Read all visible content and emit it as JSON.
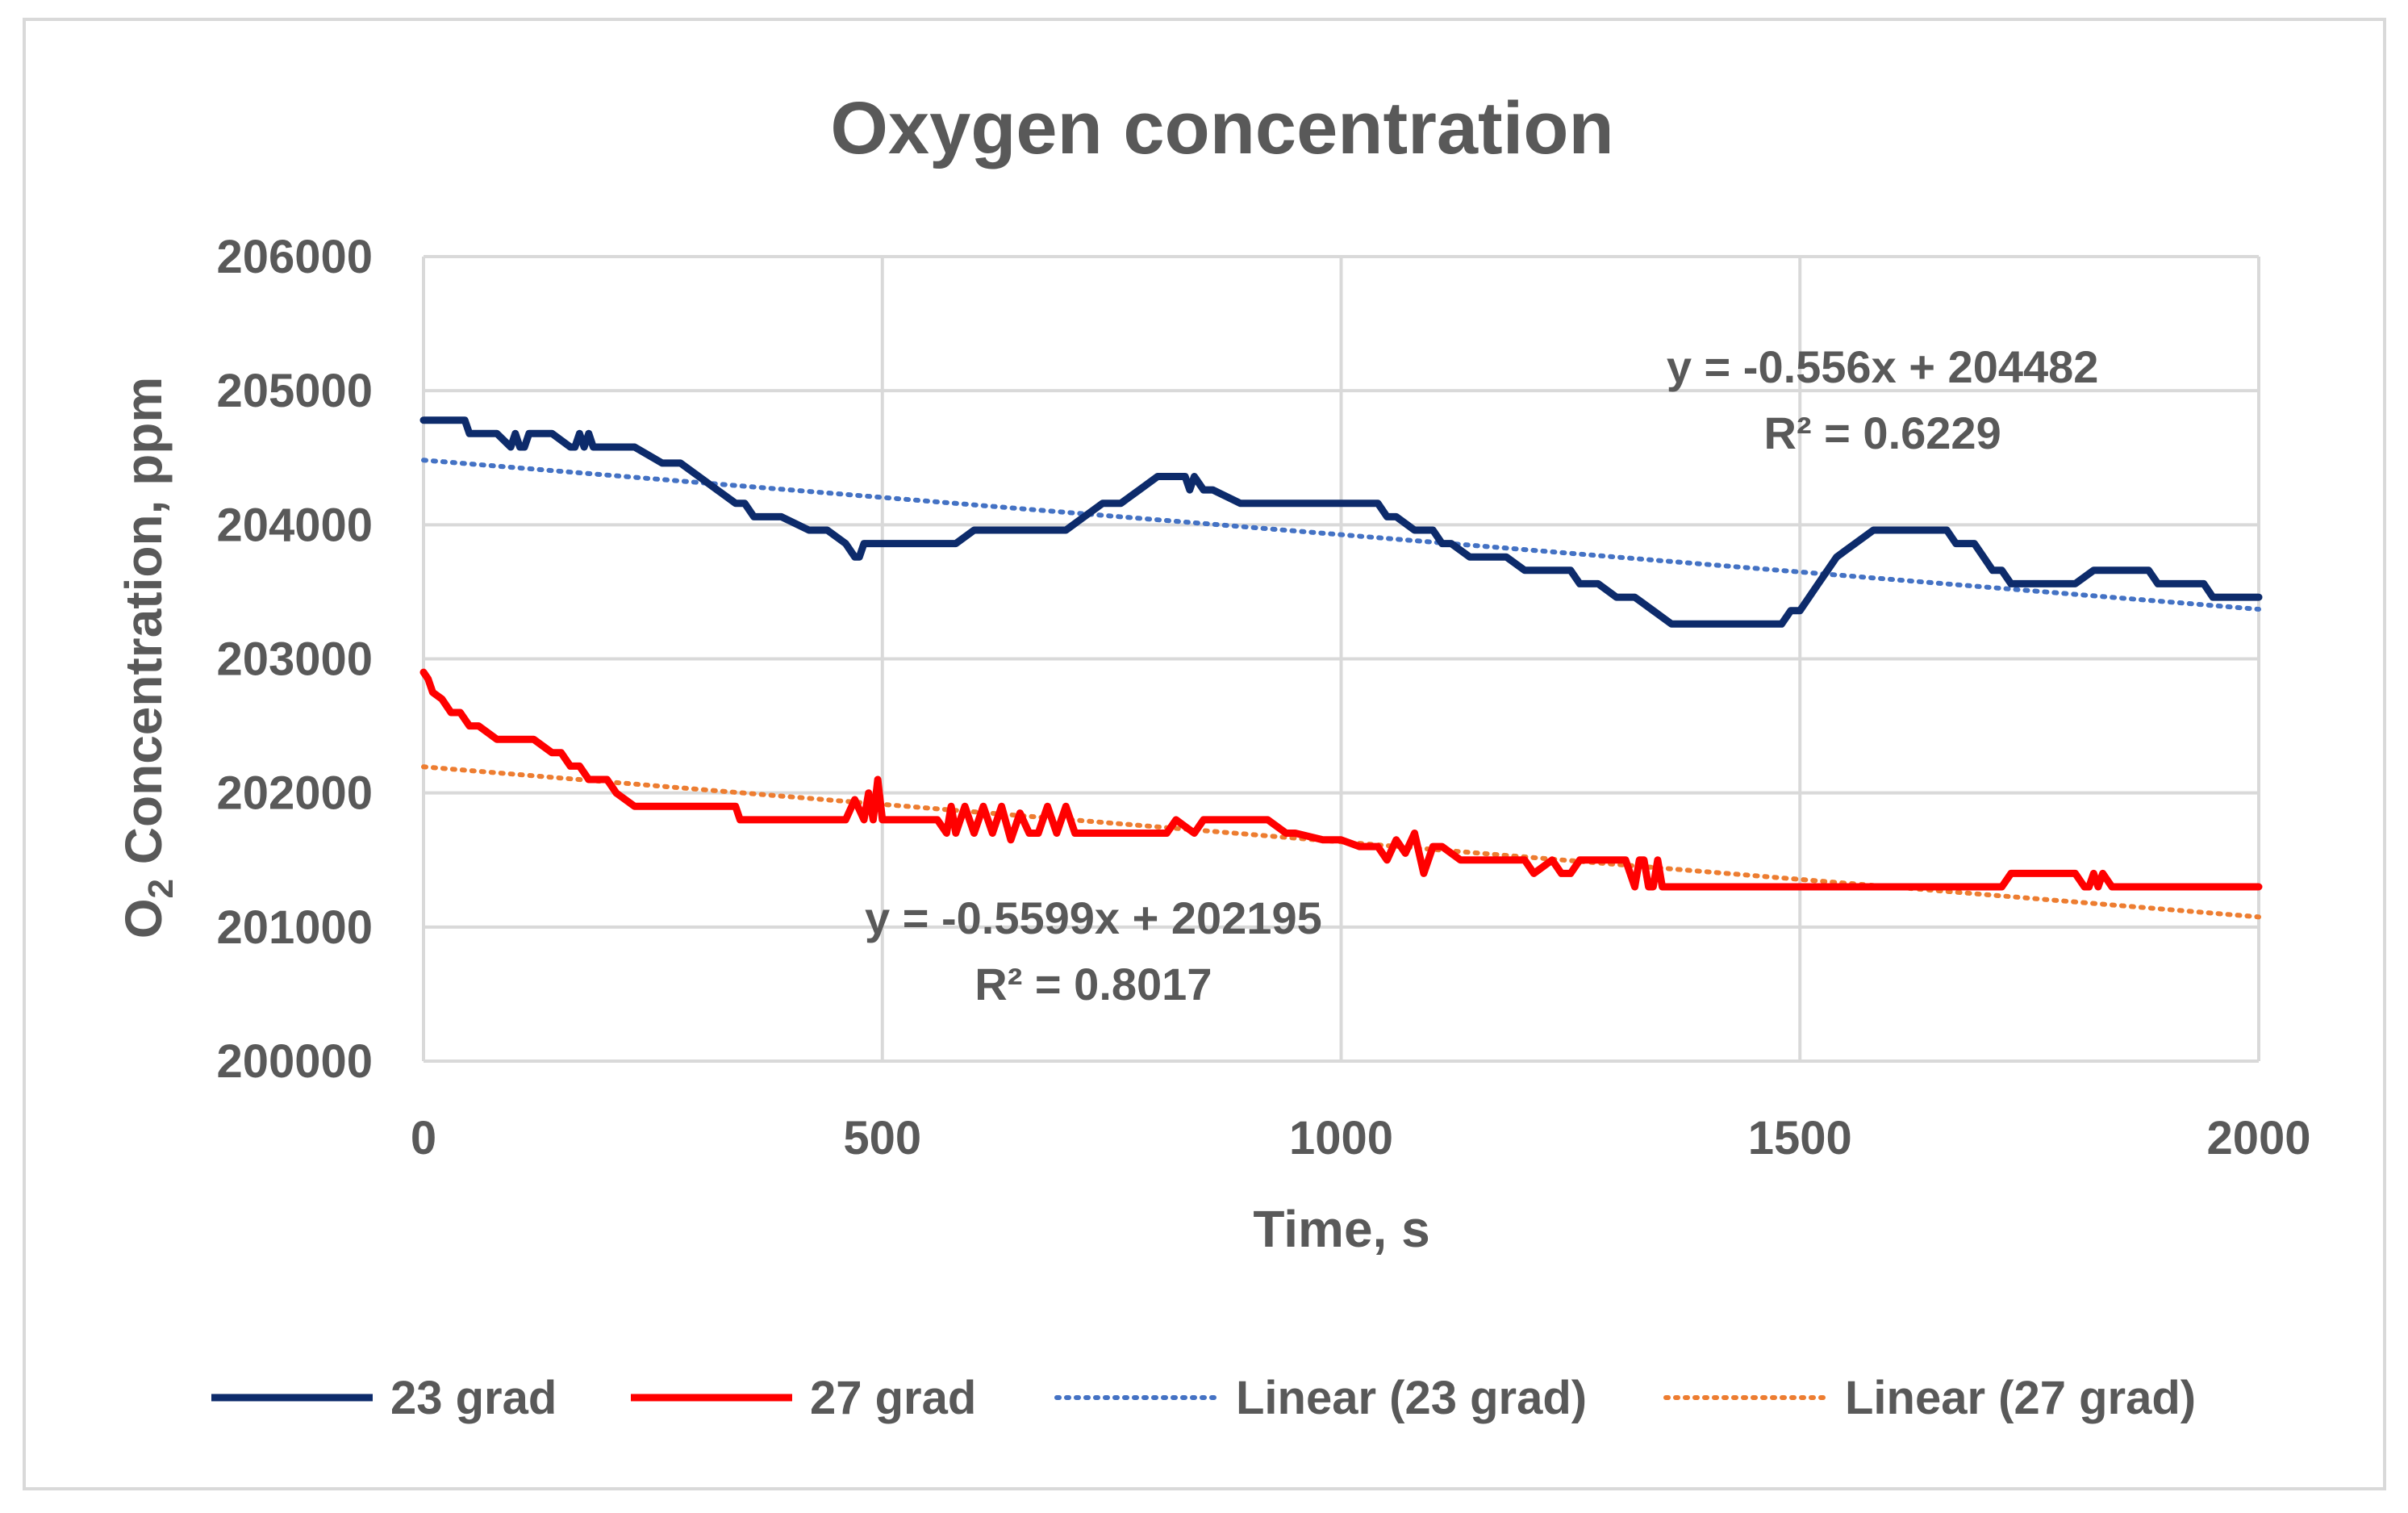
{
  "chart_data": {
    "type": "line",
    "title": "Oxygen concentration",
    "xlabel": "Time, s",
    "ylabel_main": "O",
    "ylabel_sub": "2",
    "ylabel_rest": " Concentration, ppm",
    "xlim": [
      0,
      2000
    ],
    "ylim": [
      200000,
      206000
    ],
    "xticks": [
      0,
      500,
      1000,
      1500,
      2000
    ],
    "yticks": [
      200000,
      201000,
      202000,
      203000,
      204000,
      205000,
      206000
    ],
    "grid": true,
    "legend_position": "bottom",
    "series": [
      {
        "name": "23 grad",
        "color": "#0d2b6b",
        "style": "solid",
        "x": [
          0,
          45,
          50,
          80,
          95,
          100,
          105,
          110,
          115,
          125,
          140,
          160,
          165,
          170,
          175,
          180,
          185,
          190,
          230,
          260,
          280,
          300,
          320,
          340,
          350,
          360,
          370,
          390,
          420,
          440,
          460,
          470,
          475,
          480,
          490,
          500,
          540,
          580,
          600,
          620,
          700,
          720,
          740,
          760,
          780,
          800,
          810,
          820,
          830,
          835,
          840,
          850,
          860,
          890,
          900,
          940,
          1000,
          1020,
          1040,
          1050,
          1060,
          1080,
          1100,
          1110,
          1120,
          1140,
          1180,
          1200,
          1250,
          1260,
          1280,
          1300,
          1320,
          1340,
          1360,
          1400,
          1440,
          1470,
          1480,
          1490,
          1500,
          1510,
          1520,
          1530,
          1540,
          1560,
          1580,
          1600,
          1640,
          1660,
          1670,
          1690,
          1700,
          1710,
          1720,
          1730,
          1780,
          1800,
          1820,
          1880,
          1890,
          1910,
          1940,
          1950,
          1960,
          2000
        ],
        "y": [
          204780,
          204780,
          204680,
          204680,
          204580,
          204680,
          204580,
          204580,
          204680,
          204680,
          204680,
          204580,
          204580,
          204680,
          204580,
          204680,
          204580,
          204580,
          204580,
          204460,
          204460,
          204360,
          204260,
          204160,
          204160,
          204060,
          204060,
          204060,
          203960,
          203960,
          203860,
          203760,
          203760,
          203860,
          203860,
          203860,
          203860,
          203860,
          203960,
          203960,
          203960,
          204060,
          204160,
          204160,
          204260,
          204360,
          204360,
          204360,
          204360,
          204260,
          204360,
          204260,
          204260,
          204160,
          204160,
          204160,
          204160,
          204160,
          204160,
          204060,
          204060,
          203960,
          203960,
          203860,
          203860,
          203760,
          203760,
          203660,
          203660,
          203560,
          203560,
          203460,
          203460,
          203360,
          203260,
          203260,
          203260,
          203260,
          203260,
          203360,
          203360,
          203460,
          203560,
          203660,
          203760,
          203860,
          203960,
          203960,
          203960,
          203960,
          203860,
          203860,
          203760,
          203660,
          203660,
          203560,
          203560,
          203560,
          203660,
          203660,
          203560,
          203560,
          203560,
          203460,
          203460,
          203460
        ]
      },
      {
        "name": "27 grad",
        "color": "#ff0000",
        "style": "solid",
        "x": [
          0,
          5,
          10,
          20,
          30,
          40,
          50,
          60,
          80,
          90,
          100,
          120,
          140,
          150,
          160,
          170,
          180,
          200,
          210,
          230,
          250,
          270,
          290,
          300,
          340,
          345,
          350,
          360,
          420,
          450,
          460,
          470,
          480,
          485,
          490,
          495,
          500,
          510,
          560,
          570,
          575,
          580,
          590,
          600,
          610,
          620,
          630,
          640,
          650,
          660,
          670,
          680,
          690,
          700,
          710,
          750,
          810,
          820,
          830,
          840,
          850,
          860,
          870,
          880,
          900,
          920,
          940,
          950,
          980,
          1000,
          1020,
          1040,
          1050,
          1060,
          1070,
          1080,
          1090,
          1100,
          1110,
          1130,
          1140,
          1200,
          1210,
          1230,
          1240,
          1250,
          1260,
          1280,
          1290,
          1310,
          1320,
          1325,
          1330,
          1335,
          1340,
          1345,
          1350,
          1355,
          1360,
          1400,
          1500,
          1600,
          1700,
          1720,
          1730,
          1760,
          1800,
          1810,
          1815,
          1820,
          1825,
          1830,
          1840,
          2000
        ],
        "y": [
          202900,
          202850,
          202750,
          202700,
          202600,
          202600,
          202500,
          202500,
          202400,
          202400,
          202400,
          202400,
          202300,
          202300,
          202200,
          202200,
          202100,
          202100,
          202000,
          201900,
          201900,
          201900,
          201900,
          201900,
          201900,
          201800,
          201800,
          201800,
          201800,
          201800,
          201800,
          201950,
          201800,
          202000,
          201800,
          202100,
          201800,
          201800,
          201800,
          201700,
          201900,
          201700,
          201900,
          201700,
          201900,
          201700,
          201900,
          201650,
          201850,
          201700,
          201700,
          201900,
          201700,
          201900,
          201700,
          201700,
          201700,
          201800,
          201750,
          201700,
          201800,
          201800,
          201800,
          201800,
          201800,
          201800,
          201700,
          201700,
          201650,
          201650,
          201600,
          201600,
          201500,
          201650,
          201550,
          201700,
          201400,
          201600,
          201600,
          201500,
          201500,
          201500,
          201400,
          201500,
          201400,
          201400,
          201500,
          201500,
          201500,
          201500,
          201300,
          201500,
          201500,
          201300,
          201300,
          201500,
          201300,
          201300,
          201300,
          201300,
          201300,
          201300,
          201300,
          201300,
          201400,
          201400,
          201400,
          201300,
          201300,
          201400,
          201300,
          201400,
          201300,
          201300
        ]
      },
      {
        "name": "Linear (23 grad)",
        "color": "#4472c4",
        "style": "dotted",
        "slope": -0.556,
        "intercept": 204482
      },
      {
        "name": "Linear (27 grad)",
        "color": "#ed7d31",
        "style": "dotted",
        "slope": -0.5599,
        "intercept": 202195
      }
    ],
    "annotations": [
      {
        "text_line1": "y = -0.556x + 204482",
        "text_line2": "R² = 0.6229",
        "x": 1590,
        "y": 205060
      },
      {
        "text_line1": "y = -0.5599x + 202195",
        "text_line2": "R² = 0.8017",
        "x": 730,
        "y": 200950
      }
    ]
  }
}
